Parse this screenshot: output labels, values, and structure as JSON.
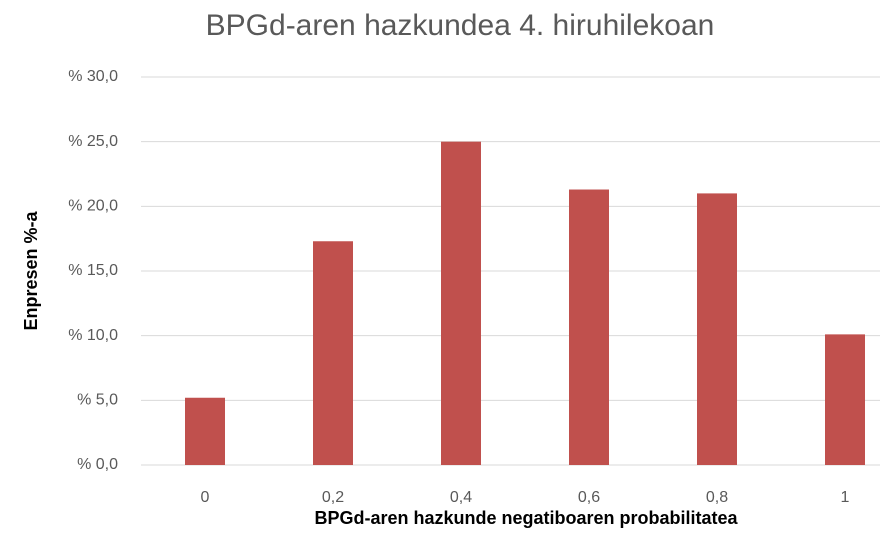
{
  "chart_data": {
    "type": "bar",
    "title": "BPGd-aren hazkundea 4. hiruhilekoan",
    "x_label": "BPGd-aren hazkunde negatiboaren probabilitatea",
    "y_label": "Enpresen %-a",
    "categories": [
      "0",
      "0,2",
      "0,4",
      "0,6",
      "0,8",
      "1"
    ],
    "values": [
      5.2,
      17.3,
      25.0,
      21.3,
      21.0,
      10.1
    ],
    "color": "#c0504d",
    "ylim": [
      0,
      30
    ],
    "yticks": [
      {
        "value": 0,
        "label": "% 0,0"
      },
      {
        "value": 5,
        "label": "% 5,0"
      },
      {
        "value": 10,
        "label": "% 10,0"
      },
      {
        "value": 15,
        "label": "% 15,0"
      },
      {
        "value": 20,
        "label": "% 20,0"
      },
      {
        "value": 25,
        "label": "% 25,0"
      },
      {
        "value": 30,
        "label": "% 30,0"
      }
    ],
    "grid": true
  }
}
